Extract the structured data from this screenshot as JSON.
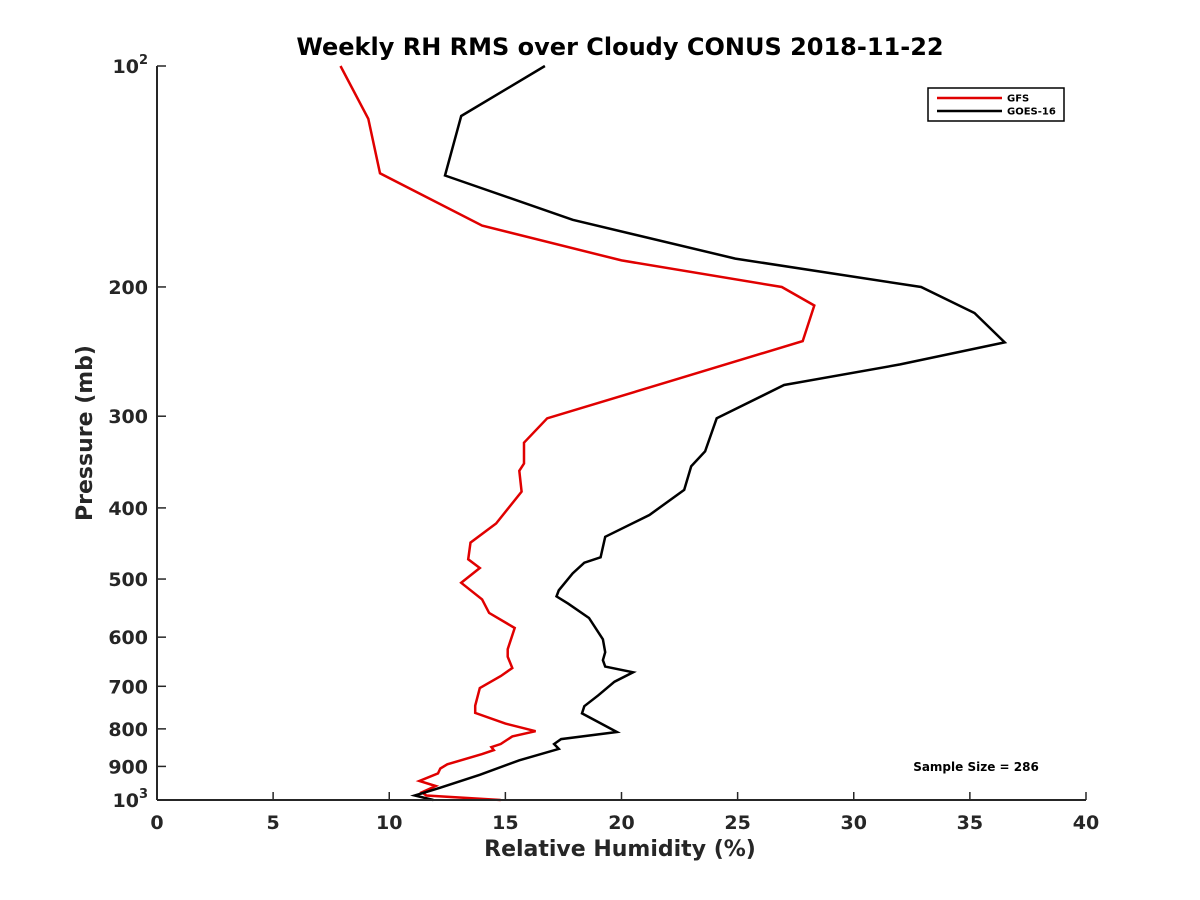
{
  "chart_data": {
    "type": "line",
    "title": "Weekly RH RMS over Cloudy CONUS 2018-11-22",
    "xlabel": "Relative Humidity (%)",
    "ylabel": "Pressure (mb)",
    "xlim": [
      0,
      40
    ],
    "ylim": [
      100,
      1000
    ],
    "y_scale": "log",
    "y_reversed": true,
    "x_ticks": [
      0,
      5,
      10,
      15,
      20,
      25,
      30,
      35,
      40
    ],
    "y_ticks": [
      {
        "value": 100,
        "base": "10",
        "exp": "2"
      },
      {
        "value": 200,
        "label": "200"
      },
      {
        "value": 300,
        "label": "300"
      },
      {
        "value": 400,
        "label": "400"
      },
      {
        "value": 500,
        "label": "500"
      },
      {
        "value": 600,
        "label": "600"
      },
      {
        "value": 700,
        "label": "700"
      },
      {
        "value": 800,
        "label": "800"
      },
      {
        "value": 900,
        "label": "900"
      },
      {
        "value": 1000,
        "base": "10",
        "exp": "3"
      }
    ],
    "grid": false,
    "legend_position": "top-right",
    "annotation": "Sample Size = 286",
    "series": [
      {
        "name": "GFS",
        "color": "#e00000",
        "points": [
          [
            7.9,
            100
          ],
          [
            9.1,
            118
          ],
          [
            9.6,
            140
          ],
          [
            14.0,
            165
          ],
          [
            20.0,
            184
          ],
          [
            26.9,
            200
          ],
          [
            28.3,
            212
          ],
          [
            27.8,
            237
          ],
          [
            20.9,
            276
          ],
          [
            16.8,
            302
          ],
          [
            15.8,
            326
          ],
          [
            15.8,
            348
          ],
          [
            15.6,
            356
          ],
          [
            15.7,
            380
          ],
          [
            14.6,
            420
          ],
          [
            13.5,
            446
          ],
          [
            13.4,
            470
          ],
          [
            13.9,
            483
          ],
          [
            13.1,
            506
          ],
          [
            14.0,
            533
          ],
          [
            14.3,
            556
          ],
          [
            15.4,
            583
          ],
          [
            15.1,
            623
          ],
          [
            15.1,
            638
          ],
          [
            15.3,
            661
          ],
          [
            14.8,
            678
          ],
          [
            13.9,
            704
          ],
          [
            13.7,
            744
          ],
          [
            13.7,
            761
          ],
          [
            15.0,
            787
          ],
          [
            16.3,
            806
          ],
          [
            15.3,
            819
          ],
          [
            14.8,
            839
          ],
          [
            14.4,
            847
          ],
          [
            14.5,
            855
          ],
          [
            14.0,
            866
          ],
          [
            12.5,
            894
          ],
          [
            12.2,
            906
          ],
          [
            12.1,
            920
          ],
          [
            11.3,
            942
          ],
          [
            12.0,
            957
          ],
          [
            11.4,
            976
          ],
          [
            11.6,
            986
          ],
          [
            14.8,
            1000
          ]
        ]
      },
      {
        "name": "GOES-16",
        "color": "#000000",
        "points": [
          [
            16.7,
            100
          ],
          [
            13.1,
            117
          ],
          [
            12.4,
            141
          ],
          [
            17.9,
            162
          ],
          [
            24.9,
            183
          ],
          [
            32.9,
            200
          ],
          [
            35.2,
            217
          ],
          [
            36.5,
            238
          ],
          [
            32.0,
            255
          ],
          [
            27.0,
            272
          ],
          [
            24.1,
            302
          ],
          [
            23.6,
            335
          ],
          [
            23.0,
            351
          ],
          [
            22.7,
            378
          ],
          [
            21.2,
            409
          ],
          [
            19.3,
            438
          ],
          [
            19.1,
            467
          ],
          [
            18.4,
            475
          ],
          [
            17.9,
            491
          ],
          [
            17.3,
            518
          ],
          [
            17.2,
            528
          ],
          [
            17.7,
            540
          ],
          [
            18.6,
            565
          ],
          [
            19.2,
            604
          ],
          [
            19.3,
            629
          ],
          [
            19.2,
            645
          ],
          [
            19.3,
            658
          ],
          [
            20.5,
            670
          ],
          [
            19.7,
            690
          ],
          [
            19.0,
            720
          ],
          [
            18.4,
            745
          ],
          [
            18.3,
            762
          ],
          [
            19.8,
            808
          ],
          [
            17.4,
            826
          ],
          [
            17.1,
            839
          ],
          [
            17.3,
            852
          ],
          [
            15.6,
            883
          ],
          [
            13.9,
            924
          ],
          [
            12.2,
            962
          ],
          [
            11.1,
            986
          ],
          [
            11.9,
            1000
          ]
        ]
      }
    ]
  }
}
